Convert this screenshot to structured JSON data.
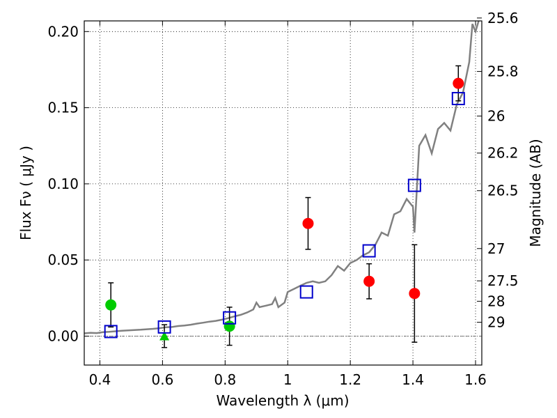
{
  "chart_data": {
    "type": "scatter",
    "xlabel": "Wavelength  λ (μm)",
    "ylabel": "Flux  Fν  ( μJy )",
    "y2label": "Magnitude (AB)",
    "xlim": [
      0.35,
      1.62
    ],
    "ylim": [
      -0.019,
      0.207
    ],
    "grid": true,
    "x_ticks": [
      {
        "value": 0.4,
        "label": "0.4"
      },
      {
        "value": 0.6,
        "label": "0.6"
      },
      {
        "value": 0.8,
        "label": "0.8"
      },
      {
        "value": 1.0,
        "label": "1"
      },
      {
        "value": 1.2,
        "label": "1.2"
      },
      {
        "value": 1.4,
        "label": "1.4"
      },
      {
        "value": 1.6,
        "label": "1.6"
      }
    ],
    "y_ticks": [
      {
        "value": 0.0,
        "label": "0.00"
      },
      {
        "value": 0.05,
        "label": "0.05"
      },
      {
        "value": 0.1,
        "label": "0.10"
      },
      {
        "value": 0.15,
        "label": "0.15"
      },
      {
        "value": 0.2,
        "label": "0.20"
      }
    ],
    "mag_ticks": [
      {
        "value": 0.2089,
        "label": "25.6"
      },
      {
        "value": 0.1738,
        "label": "25.8"
      },
      {
        "value": 0.1445,
        "label": "26"
      },
      {
        "value": 0.1202,
        "label": "26.2"
      },
      {
        "value": 0.0955,
        "label": "26.5"
      },
      {
        "value": 0.0575,
        "label": "27"
      },
      {
        "value": 0.0363,
        "label": "27.5"
      },
      {
        "value": 0.0229,
        "label": "28"
      },
      {
        "value": 0.0091,
        "label": "29"
      }
    ],
    "model_spectrum": {
      "color": "#808080",
      "points": [
        [
          0.35,
          0.0018
        ],
        [
          0.37,
          0.0022
        ],
        [
          0.39,
          0.002
        ],
        [
          0.41,
          0.0026
        ],
        [
          0.43,
          0.0028
        ],
        [
          0.45,
          0.0032
        ],
        [
          0.47,
          0.0035
        ],
        [
          0.49,
          0.0038
        ],
        [
          0.51,
          0.004
        ],
        [
          0.53,
          0.0042
        ],
        [
          0.55,
          0.0045
        ],
        [
          0.57,
          0.0048
        ],
        [
          0.59,
          0.0052
        ],
        [
          0.61,
          0.0058
        ],
        [
          0.63,
          0.006
        ],
        [
          0.65,
          0.0066
        ],
        [
          0.67,
          0.007
        ],
        [
          0.69,
          0.0075
        ],
        [
          0.71,
          0.0082
        ],
        [
          0.73,
          0.0088
        ],
        [
          0.75,
          0.0095
        ],
        [
          0.77,
          0.01
        ],
        [
          0.79,
          0.0108
        ],
        [
          0.81,
          0.0118
        ],
        [
          0.83,
          0.013
        ],
        [
          0.85,
          0.014
        ],
        [
          0.87,
          0.0155
        ],
        [
          0.89,
          0.0175
        ],
        [
          0.9,
          0.022
        ],
        [
          0.91,
          0.019
        ],
        [
          0.93,
          0.02
        ],
        [
          0.95,
          0.021
        ],
        [
          0.96,
          0.025
        ],
        [
          0.97,
          0.019
        ],
        [
          0.99,
          0.022
        ],
        [
          1.0,
          0.029
        ],
        [
          1.02,
          0.031
        ],
        [
          1.04,
          0.033
        ],
        [
          1.06,
          0.035
        ],
        [
          1.08,
          0.036
        ],
        [
          1.1,
          0.035
        ],
        [
          1.12,
          0.036
        ],
        [
          1.14,
          0.04
        ],
        [
          1.16,
          0.046
        ],
        [
          1.18,
          0.043
        ],
        [
          1.2,
          0.048
        ],
        [
          1.22,
          0.05
        ],
        [
          1.24,
          0.053
        ],
        [
          1.26,
          0.055
        ],
        [
          1.28,
          0.06
        ],
        [
          1.3,
          0.068
        ],
        [
          1.32,
          0.066
        ],
        [
          1.34,
          0.08
        ],
        [
          1.36,
          0.082
        ],
        [
          1.38,
          0.09
        ],
        [
          1.4,
          0.085
        ],
        [
          1.405,
          0.068
        ],
        [
          1.42,
          0.125
        ],
        [
          1.44,
          0.132
        ],
        [
          1.46,
          0.12
        ],
        [
          1.48,
          0.136
        ],
        [
          1.5,
          0.14
        ],
        [
          1.52,
          0.135
        ],
        [
          1.54,
          0.152
        ],
        [
          1.56,
          0.16
        ],
        [
          1.58,
          0.18
        ],
        [
          1.59,
          0.205
        ],
        [
          1.6,
          0.2
        ],
        [
          1.61,
          0.21
        ]
      ]
    },
    "series": [
      {
        "marker": "circle",
        "color": "#ff0000",
        "points": [
          {
            "x": 1.065,
            "y": 0.074,
            "err": 0.017
          },
          {
            "x": 1.26,
            "y": 0.036,
            "err": 0.0115
          },
          {
            "x": 1.405,
            "y": 0.028,
            "err": 0.032
          },
          {
            "x": 1.545,
            "y": 0.166,
            "err": 0.0115
          }
        ]
      },
      {
        "marker": "circle",
        "color": "#00cc00",
        "points": [
          {
            "x": 0.435,
            "y": 0.0205,
            "err": 0.0145
          },
          {
            "x": 0.814,
            "y": 0.0065,
            "err": 0.0125
          }
        ]
      },
      {
        "marker": "triangle",
        "color": "#00cc00",
        "points": [
          {
            "x": 0.606,
            "y": 0.0,
            "err": 0.0075
          }
        ]
      },
      {
        "marker": "open-square",
        "color": "#0000cc",
        "points": [
          {
            "x": 0.435,
            "y": 0.003
          },
          {
            "x": 0.606,
            "y": 0.006
          },
          {
            "x": 0.814,
            "y": 0.012
          },
          {
            "x": 1.06,
            "y": 0.029
          },
          {
            "x": 1.26,
            "y": 0.056
          },
          {
            "x": 1.405,
            "y": 0.099
          },
          {
            "x": 1.545,
            "y": 0.156
          }
        ]
      }
    ]
  }
}
